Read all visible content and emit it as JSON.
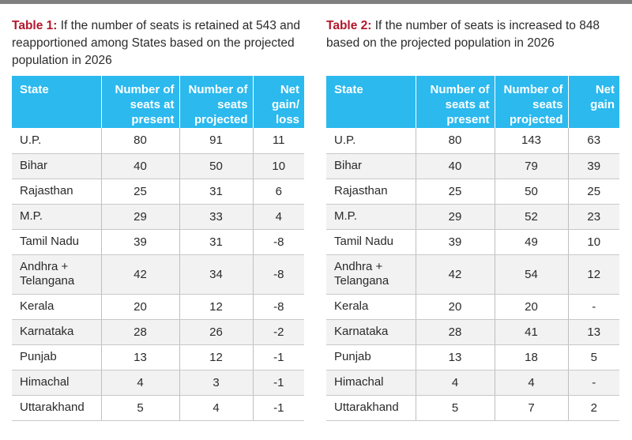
{
  "table1": {
    "caption_tag": "Table 1:",
    "caption_text": " If the number of seats is retained at 543 and reapportioned among States based on the projected population in 2026",
    "headers": [
      "State",
      "Number of seats at present",
      "Number of seats projected",
      "Net gain/ loss"
    ],
    "rows": [
      {
        "state": "U.P.",
        "present": "80",
        "projected": "91",
        "net": "11"
      },
      {
        "state": "Bihar",
        "present": "40",
        "projected": "50",
        "net": "10"
      },
      {
        "state": "Rajasthan",
        "present": "25",
        "projected": "31",
        "net": "6"
      },
      {
        "state": "M.P.",
        "present": "29",
        "projected": "33",
        "net": "4"
      },
      {
        "state": "Tamil Nadu",
        "present": "39",
        "projected": "31",
        "net": "-8"
      },
      {
        "state": "Andhra + Telangana",
        "present": "42",
        "projected": "34",
        "net": "-8"
      },
      {
        "state": "Kerala",
        "present": "20",
        "projected": "12",
        "net": "-8"
      },
      {
        "state": "Karnataka",
        "present": "28",
        "projected": "26",
        "net": "-2"
      },
      {
        "state": "Punjab",
        "present": "13",
        "projected": "12",
        "net": "-1"
      },
      {
        "state": "Himachal",
        "present": "4",
        "projected": "3",
        "net": "-1"
      },
      {
        "state": "Uttarakhand",
        "present": "5",
        "projected": "4",
        "net": "-1"
      }
    ]
  },
  "table2": {
    "caption_tag": "Table 2:",
    "caption_text": " If the number of seats is increased to 848 based on the projected population in 2026",
    "headers": [
      "State",
      "Number of seats at present",
      "Number of seats projected",
      "Net gain"
    ],
    "rows": [
      {
        "state": "U.P.",
        "present": "80",
        "projected": "143",
        "net": "63"
      },
      {
        "state": "Bihar",
        "present": "40",
        "projected": "79",
        "net": "39"
      },
      {
        "state": "Rajasthan",
        "present": "25",
        "projected": "50",
        "net": "25"
      },
      {
        "state": "M.P.",
        "present": "29",
        "projected": "52",
        "net": "23"
      },
      {
        "state": "Tamil Nadu",
        "present": "39",
        "projected": "49",
        "net": "10"
      },
      {
        "state": "Andhra + Telangana",
        "present": "42",
        "projected": "54",
        "net": "12"
      },
      {
        "state": "Kerala",
        "present": "20",
        "projected": "20",
        "net": "-"
      },
      {
        "state": "Karnataka",
        "present": "28",
        "projected": "41",
        "net": "13"
      },
      {
        "state": "Punjab",
        "present": "13",
        "projected": "18",
        "net": "5"
      },
      {
        "state": "Himachal",
        "present": "4",
        "projected": "4",
        "net": "-"
      },
      {
        "state": "Uttarakhand",
        "present": "5",
        "projected": "7",
        "net": "2"
      }
    ]
  },
  "colors": {
    "header_bg": "#2bb9ee",
    "caption_tag": "#b3182b",
    "stripe": "#f2f2f2",
    "top_rule": "#7f7f7f"
  }
}
